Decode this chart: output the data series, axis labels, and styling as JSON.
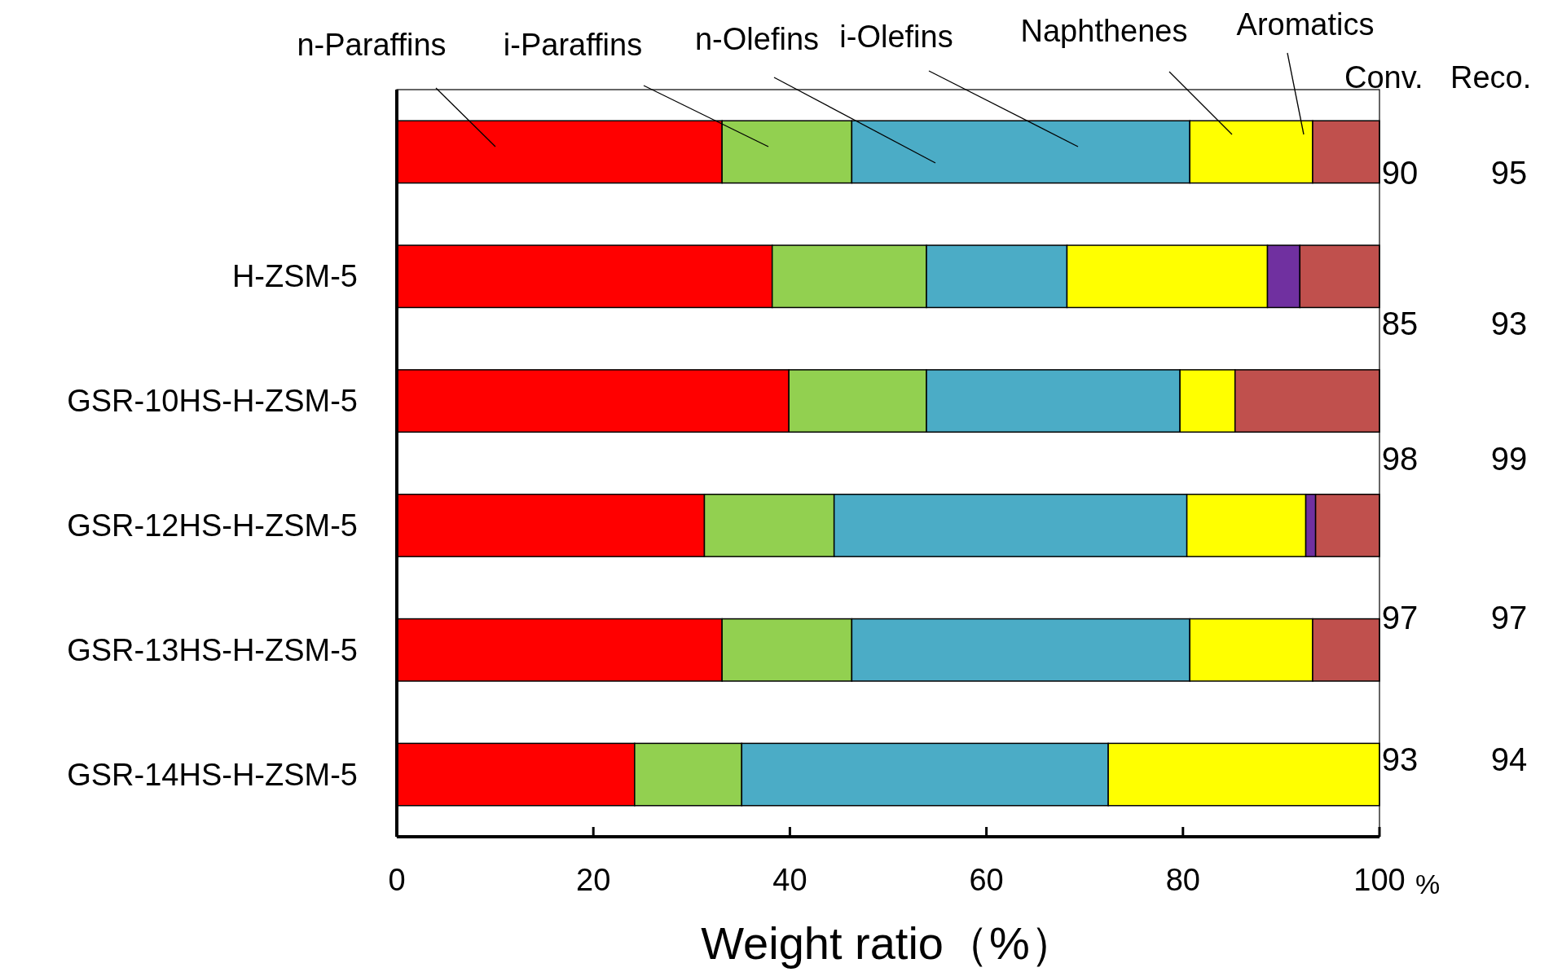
{
  "chart_data": {
    "type": "bar",
    "orientation": "horizontal",
    "stacked": true,
    "xlabel": "Weight ratio（%）",
    "categories": [
      null,
      "H-ZSM-5",
      "GSR-10HS-H-ZSM-5",
      "GSR-12HS-H-ZSM-5",
      "GSR-13HS-H-ZSM-5",
      "GSR-14HS-H-ZSM-5"
    ],
    "series": [
      {
        "color": "#ff0000",
        "values": [
          33.1,
          38.2,
          39.9,
          31.3,
          33.1,
          24.2
        ]
      },
      {
        "color": "#92d050",
        "values": [
          13.2,
          15.7,
          14.0,
          13.2,
          13.2,
          10.9
        ]
      },
      {
        "color": "#4bacc6",
        "values": [
          34.4,
          14.3,
          25.8,
          35.9,
          34.4,
          37.3
        ]
      },
      {
        "color": "#ffff00",
        "values": [
          12.5,
          20.4,
          5.6,
          12.1,
          12.5,
          27.6
        ]
      },
      {
        "color": "#7030a0",
        "values": [
          0,
          3.3,
          0,
          1.0,
          0,
          0
        ]
      },
      {
        "color": "#c0504d",
        "values": [
          6.8,
          8.1,
          14.7,
          6.5,
          6.8,
          0
        ]
      }
    ],
    "xlim": [
      0,
      100
    ],
    "xticks": [
      0,
      20,
      40,
      60,
      80,
      100
    ],
    "annotations": [
      "n-Paraffins",
      "i-Paraffins",
      "n-Olefins",
      "i-Olefins",
      "Naphthenes",
      "Aromatics",
      "Conv.",
      "Reco.",
      "90",
      "95",
      "85",
      "93",
      "98",
      "99",
      "97",
      "97",
      "93",
      "94",
      "%"
    ]
  }
}
